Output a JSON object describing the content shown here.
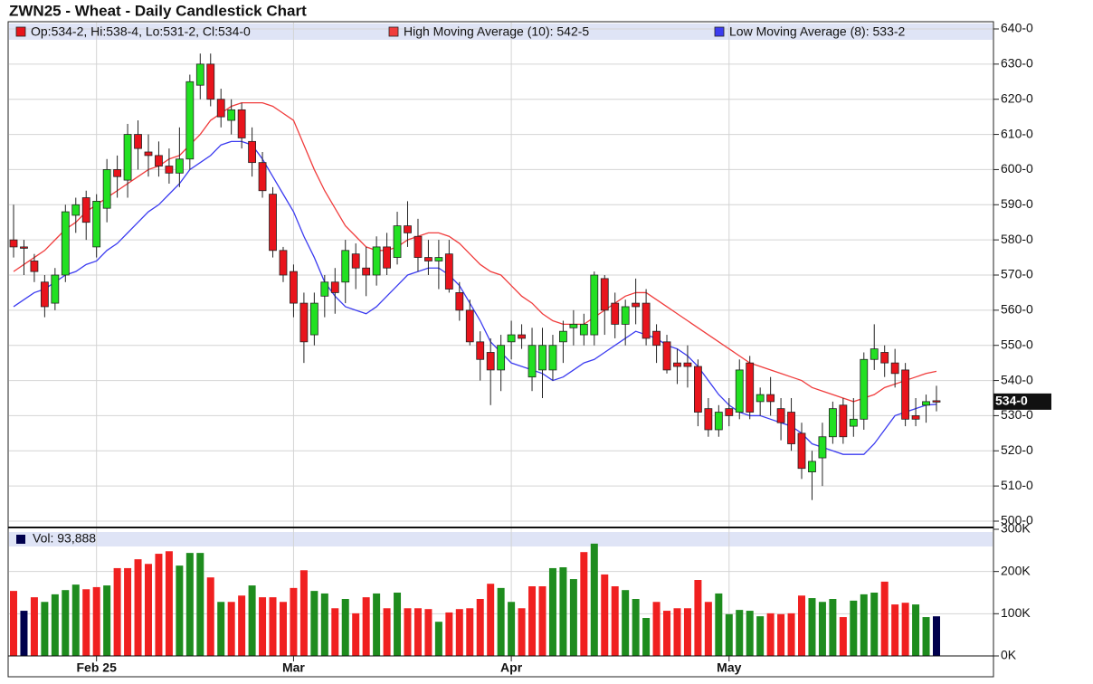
{
  "chart_data": [
    {
      "type": "candlestick",
      "title": "ZWN25 - Wheat - Daily Candlestick Chart",
      "legend": "Op:534-2, Hi:538-4, Lo:531-2, Cl:534-0",
      "categories": [
        null,
        null,
        null,
        null,
        null,
        null,
        null,
        null,
        "Feb 25",
        null,
        null,
        null,
        null,
        null,
        null,
        null,
        null,
        null,
        null,
        null,
        null,
        null,
        null,
        null,
        null,
        null,
        null,
        "Mar",
        null,
        null,
        null,
        null,
        null,
        null,
        null,
        null,
        null,
        null,
        null,
        null,
        null,
        null,
        null,
        null,
        null,
        null,
        null,
        null,
        "Apr",
        null,
        null,
        null,
        null,
        null,
        null,
        null,
        null,
        null,
        null,
        null,
        null,
        null,
        null,
        null,
        null,
        null,
        null,
        null,
        null,
        "May",
        null,
        null,
        null,
        null,
        null,
        null,
        null,
        null,
        null,
        null,
        null,
        null,
        null,
        null,
        null,
        null,
        null,
        null,
        null,
        null
      ],
      "open": [
        580,
        578,
        574,
        568,
        562,
        570,
        587,
        592,
        578,
        589,
        600,
        597,
        610,
        605,
        604,
        601,
        599,
        603,
        624,
        630,
        620,
        614,
        617,
        608,
        602,
        593,
        577,
        571,
        562,
        553,
        564,
        568,
        568,
        576,
        572,
        570,
        578,
        575,
        584,
        581,
        575,
        574,
        576,
        565,
        560,
        551,
        548,
        543,
        551,
        553,
        541,
        543,
        543,
        551,
        555,
        553,
        553,
        569,
        562,
        556,
        562,
        562,
        554,
        551,
        545,
        545,
        544,
        532,
        526,
        532,
        531,
        545,
        534,
        536,
        532,
        531,
        525,
        514,
        518,
        524,
        533,
        527,
        529,
        546,
        548,
        545,
        543,
        530,
        533,
        534.25
      ],
      "high": [
        590,
        580,
        576,
        570,
        572,
        590,
        592,
        594,
        593,
        603,
        604,
        613,
        614,
        610,
        608,
        606,
        612,
        627,
        633,
        633,
        623,
        620,
        619,
        612,
        605,
        595,
        578,
        573,
        565,
        565,
        570,
        572,
        580,
        579,
        578,
        581,
        582,
        588,
        591,
        586,
        580,
        580,
        580,
        568,
        563,
        554,
        552,
        553,
        557,
        556,
        555,
        555,
        553,
        557,
        560,
        559,
        571,
        570,
        565,
        563,
        569,
        566,
        556,
        553,
        549,
        550,
        546,
        535,
        533,
        535,
        546,
        547,
        538,
        541,
        535,
        535,
        528,
        520,
        528,
        534,
        535,
        535,
        548,
        556,
        550,
        549,
        545,
        535,
        536,
        538.5
      ],
      "low": [
        575,
        570,
        568,
        558,
        560,
        568,
        582,
        580,
        575,
        585,
        592,
        592,
        600,
        598,
        598,
        596,
        595,
        600,
        620,
        618,
        612,
        610,
        606,
        598,
        592,
        575,
        568,
        558,
        545,
        550,
        558,
        559,
        562,
        566,
        564,
        567,
        570,
        573,
        578,
        571,
        570,
        566,
        565,
        557,
        550,
        540,
        533,
        537,
        546,
        549,
        537,
        535,
        540,
        545,
        550,
        550,
        550,
        553,
        552,
        550,
        556,
        550,
        545,
        542,
        539,
        538,
        527,
        524,
        524,
        527,
        529,
        529,
        530,
        530,
        523,
        520,
        512,
        506,
        510,
        522,
        522,
        524,
        526,
        543,
        541,
        538,
        527,
        527,
        528,
        531.25
      ],
      "close": [
        578,
        578,
        571,
        561,
        570,
        588,
        590,
        585,
        591,
        600,
        598,
        610,
        606,
        604,
        601,
        599,
        603,
        625,
        630,
        620,
        615,
        617,
        609,
        602,
        594,
        577,
        570,
        562,
        551,
        562,
        568,
        565,
        577,
        572,
        570,
        578,
        572,
        584,
        582,
        575,
        574,
        575,
        566,
        560,
        551,
        546,
        543,
        550,
        553,
        552,
        550,
        550,
        550,
        554,
        556,
        556,
        570,
        560,
        556,
        561,
        561,
        552,
        550,
        543,
        544,
        544,
        531,
        526,
        531,
        530,
        543,
        531,
        536,
        534,
        528,
        522,
        515,
        517,
        524,
        532,
        524,
        529,
        546,
        549,
        545,
        542,
        529,
        529,
        534,
        534
      ],
      "up_color": "#22e022",
      "down_color": "#e8141c",
      "series": [
        {
          "name": "High Moving Average (10): 542-5",
          "color": "#f03c3c",
          "values": [
            571,
            573,
            575,
            577,
            580,
            583,
            585,
            588,
            590,
            592,
            594,
            596,
            598,
            600,
            601,
            603,
            604,
            607,
            610,
            614,
            616,
            618,
            619,
            619,
            619,
            618,
            616,
            614,
            607,
            600,
            594,
            589,
            584,
            581,
            578,
            577,
            577,
            578,
            580,
            581,
            582,
            582,
            581,
            579,
            576,
            573,
            571,
            570,
            567,
            564,
            562,
            559,
            557,
            556,
            556,
            556,
            558,
            560,
            562,
            564,
            565,
            565,
            563,
            561,
            559,
            557,
            555,
            553,
            551,
            549,
            547,
            545,
            544,
            543,
            542,
            541,
            540,
            538,
            537,
            536,
            535,
            534,
            535,
            536,
            538,
            539,
            540,
            541,
            542,
            542.625
          ]
        },
        {
          "name": "Low Moving Average (8): 533-2",
          "color": "#3c3cf0",
          "values": [
            561,
            563,
            565,
            566,
            568,
            570,
            571,
            573,
            574,
            577,
            579,
            582,
            585,
            588,
            590,
            593,
            596,
            600,
            602,
            604,
            607,
            608,
            608,
            607,
            603,
            598,
            593,
            588,
            581,
            575,
            568,
            564,
            561,
            560,
            559,
            561,
            564,
            567,
            570,
            571,
            572,
            572,
            570,
            567,
            562,
            557,
            551,
            548,
            545,
            544,
            543,
            542,
            540,
            541,
            543,
            545,
            546,
            548,
            550,
            552,
            554,
            553,
            552,
            550,
            549,
            547,
            544,
            540,
            536,
            533,
            531,
            530,
            530,
            529,
            528,
            527,
            525,
            522,
            521,
            520,
            519,
            519,
            519,
            522,
            526,
            530,
            531,
            532,
            533,
            533.25
          ]
        }
      ],
      "last_price": {
        "value": 534,
        "label": "534-0"
      },
      "ylim": [
        500,
        640
      ],
      "yticks": [
        {
          "value": 500,
          "label": "500-0"
        },
        {
          "value": 510,
          "label": "510-0"
        },
        {
          "value": 520,
          "label": "520-0"
        },
        {
          "value": 530,
          "label": "530-0"
        },
        {
          "value": 540,
          "label": "540-0"
        },
        {
          "value": 550,
          "label": "550-0"
        },
        {
          "value": 560,
          "label": "560-0"
        },
        {
          "value": 570,
          "label": "570-0"
        },
        {
          "value": 580,
          "label": "580-0"
        },
        {
          "value": 590,
          "label": "590-0"
        },
        {
          "value": 600,
          "label": "600-0"
        },
        {
          "value": 610,
          "label": "610-0"
        },
        {
          "value": 620,
          "label": "620-0"
        },
        {
          "value": 630,
          "label": "630-0"
        },
        {
          "value": 640,
          "label": "640-0"
        }
      ],
      "grid": true
    },
    {
      "type": "bar",
      "name": "Vol: 93,888",
      "legend_color": "#00004d",
      "values": [
        154000,
        107000,
        139000,
        128000,
        146000,
        156000,
        169000,
        158000,
        163000,
        167000,
        208000,
        208000,
        229000,
        218000,
        242000,
        248000,
        214000,
        244000,
        244000,
        186000,
        128000,
        128000,
        143000,
        167000,
        139000,
        139000,
        128000,
        161000,
        203000,
        154000,
        148000,
        113000,
        135000,
        101000,
        139000,
        148000,
        113000,
        150000,
        113000,
        113000,
        111000,
        81000,
        103000,
        111000,
        113000,
        135000,
        171000,
        161000,
        128000,
        113000,
        165000,
        165000,
        208000,
        210000,
        182000,
        246000,
        266000,
        193000,
        165000,
        156000,
        135000,
        90000,
        128000,
        107000,
        113000,
        113000,
        180000,
        128000,
        148000,
        99000,
        109000,
        107000,
        94000,
        101000,
        99000,
        101000,
        143000,
        137000,
        128000,
        135000,
        92000,
        131000,
        146000,
        150000,
        176000,
        122000,
        126000,
        122000,
        92000,
        93888
      ],
      "colors": [
        "#f02020",
        "#00004d",
        "#f02020",
        "#1e8c1e",
        "#1e8c1e",
        "#1e8c1e",
        "#1e8c1e",
        "#f02020",
        "#f02020",
        "#1e8c1e",
        "#f02020",
        "#f02020",
        "#f02020",
        "#f02020",
        "#f02020",
        "#f02020",
        "#1e8c1e",
        "#1e8c1e",
        "#1e8c1e",
        "#f02020",
        "#1e8c1e",
        "#f02020",
        "#f02020",
        "#1e8c1e",
        "#f02020",
        "#f02020",
        "#f02020",
        "#f02020",
        "#f02020",
        "#1e8c1e",
        "#1e8c1e",
        "#f02020",
        "#1e8c1e",
        "#f02020",
        "#f02020",
        "#1e8c1e",
        "#f02020",
        "#1e8c1e",
        "#f02020",
        "#f02020",
        "#f02020",
        "#1e8c1e",
        "#f02020",
        "#f02020",
        "#f02020",
        "#f02020",
        "#f02020",
        "#1e8c1e",
        "#1e8c1e",
        "#f02020",
        "#f02020",
        "#f02020",
        "#1e8c1e",
        "#1e8c1e",
        "#1e8c1e",
        "#f02020",
        "#1e8c1e",
        "#f02020",
        "#f02020",
        "#1e8c1e",
        "#1e8c1e",
        "#1e8c1e",
        "#f02020",
        "#f02020",
        "#f02020",
        "#f02020",
        "#f02020",
        "#f02020",
        "#1e8c1e",
        "#1e8c1e",
        "#1e8c1e",
        "#1e8c1e",
        "#1e8c1e",
        "#f02020",
        "#f02020",
        "#f02020",
        "#f02020",
        "#1e8c1e",
        "#1e8c1e",
        "#1e8c1e",
        "#f02020",
        "#1e8c1e",
        "#1e8c1e",
        "#1e8c1e",
        "#f02020",
        "#f02020",
        "#f02020",
        "#1e8c1e",
        "#1e8c1e",
        "#00004d"
      ],
      "ylim": [
        0,
        300000
      ],
      "yticks": [
        {
          "value": 0,
          "label": "0K"
        },
        {
          "value": 100000,
          "label": "100K"
        },
        {
          "value": 200000,
          "label": "200K"
        },
        {
          "value": 300000,
          "label": "300K"
        }
      ],
      "grid": true
    }
  ]
}
